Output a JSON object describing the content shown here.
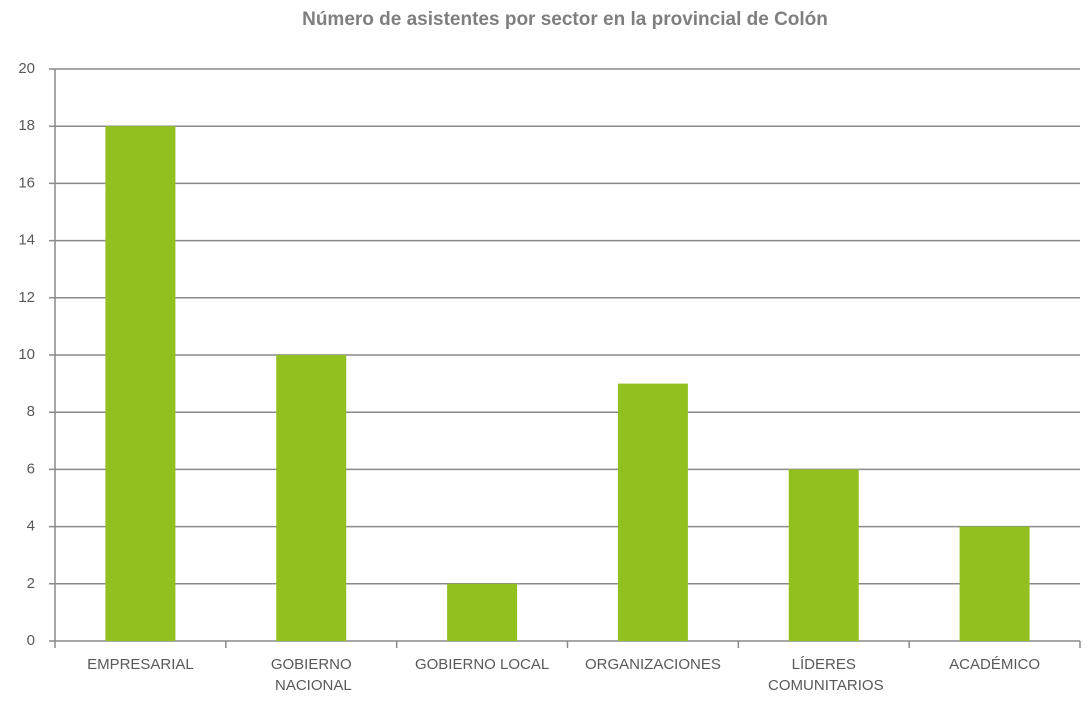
{
  "chart_data": {
    "type": "bar",
    "title": "Número de asistentes por sector en la provincial de Colón",
    "categories": [
      "EMPRESARIAL",
      "GOBIERNO NACIONAL",
      "GOBIERNO LOCAL",
      "ORGANIZACIONES",
      "LÍDERES COMUNITARIOS",
      "ACADÉMICO"
    ],
    "values": [
      18,
      10,
      2,
      9,
      6,
      4
    ],
    "color": "#92c01f",
    "ylim": [
      0,
      20
    ],
    "yticks": [
      0,
      2,
      4,
      6,
      8,
      10,
      12,
      14,
      16,
      18,
      20
    ],
    "grid": true
  }
}
